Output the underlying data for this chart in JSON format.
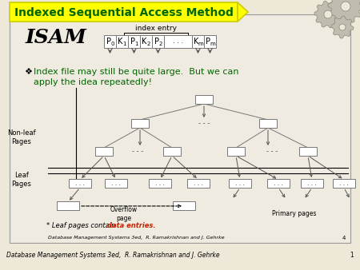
{
  "bg_color": "#ede8d8",
  "slide_bg": "#ede8d8",
  "title_text": "Indexed Sequential Access Method",
  "title_bg": "#ffff00",
  "title_color": "#006600",
  "isam_text": "ISAM",
  "index_entry_text": "index entry",
  "bullet": "❖",
  "body_text_line1": "Index file may still be quite large.  But we can",
  "body_text_line2": "apply the idea repeatedly!",
  "footer_text": "Database Management Systems 3ed,  R. Ramakrishnan and J. Gehrke",
  "footer_num": "4",
  "bottom_text": "Database Management Systems 3ed,  R. Ramakrishnan and J. Gehrke",
  "bottom_num": "1",
  "leaf_note1": "* Leaf pages contain ",
  "leaf_note2": "data entries.",
  "non_leaf_label": "Non-leaf\nPages",
  "leaf_label": "Leaf\nPages",
  "overflow_label": "Overflow\npage",
  "primary_label": "Primary pages",
  "box_edge": "#777777",
  "arrow_color": "#555555",
  "text_green": "#006600"
}
